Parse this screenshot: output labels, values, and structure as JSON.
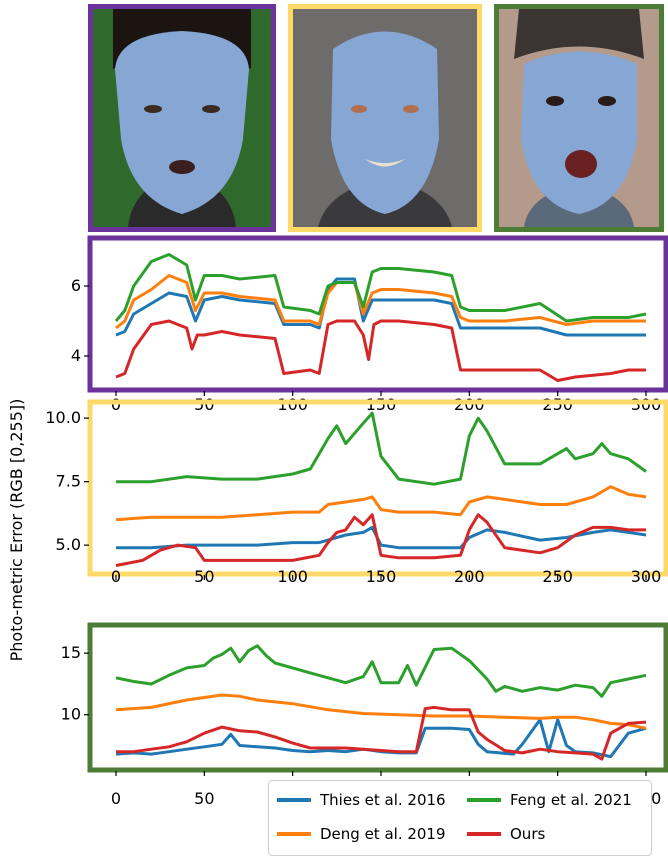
{
  "colors": {
    "purple": "#6a329a",
    "yellow": "#fdd96a",
    "green": "#4d7c36",
    "thies": "#1f77b4",
    "deng": "#ff7f0e",
    "feng": "#2ca02c",
    "ours": "#d62728"
  },
  "photos": [
    {
      "frame": "purple",
      "background": "green-screen",
      "mouth": "open"
    },
    {
      "frame": "yellow",
      "background": "indoor-gray",
      "mouth": "smile"
    },
    {
      "frame": "green",
      "background": "indoor-light",
      "mouth": "open-wide"
    }
  ],
  "y_axis_label": "Photo-metric Error  (RGB [0,255])",
  "legend": [
    {
      "label": "Thies et al. 2016",
      "color": "#1f77b4"
    },
    {
      "label": "Feng et al. 2021",
      "color": "#2ca02c"
    },
    {
      "label": "Deng et al. 2019",
      "color": "#ff7f0e"
    },
    {
      "label": "Ours",
      "color": "#d62728"
    }
  ],
  "chart_data": [
    {
      "type": "line",
      "frame": "purple",
      "xlim": [
        0,
        300
      ],
      "ylim": [
        3.2,
        7.2
      ],
      "xticks": [
        0,
        50,
        100,
        150,
        200,
        250,
        300
      ],
      "yticks": [
        4,
        6
      ],
      "series": [
        {
          "name": "Thies et al. 2016",
          "x": [
            0,
            5,
            10,
            20,
            30,
            40,
            45,
            50,
            60,
            70,
            90,
            95,
            110,
            115,
            120,
            125,
            135,
            140,
            145,
            150,
            160,
            180,
            190,
            195,
            200,
            220,
            240,
            255,
            270,
            290,
            300
          ],
          "y": [
            4.6,
            4.7,
            5.2,
            5.5,
            5.8,
            5.7,
            5.0,
            5.6,
            5.7,
            5.6,
            5.5,
            4.9,
            4.9,
            4.8,
            5.9,
            6.2,
            6.2,
            5.0,
            5.6,
            5.6,
            5.6,
            5.6,
            5.5,
            4.8,
            4.8,
            4.8,
            4.8,
            4.6,
            4.6,
            4.6,
            4.6
          ]
        },
        {
          "name": "Deng et al. 2019",
          "x": [
            0,
            5,
            10,
            20,
            30,
            40,
            45,
            50,
            60,
            70,
            90,
            95,
            110,
            115,
            120,
            125,
            135,
            140,
            145,
            150,
            160,
            180,
            190,
            195,
            200,
            220,
            240,
            255,
            270,
            290,
            300
          ],
          "y": [
            4.8,
            5.0,
            5.6,
            5.9,
            6.3,
            6.1,
            5.3,
            5.8,
            5.8,
            5.7,
            5.6,
            5.0,
            5.0,
            4.9,
            5.8,
            6.1,
            6.1,
            5.2,
            5.8,
            5.9,
            5.9,
            5.8,
            5.7,
            5.1,
            5.0,
            5.0,
            5.1,
            4.9,
            5.0,
            5.0,
            5.0
          ]
        },
        {
          "name": "Feng et al. 2021",
          "x": [
            0,
            5,
            10,
            20,
            30,
            40,
            45,
            50,
            60,
            70,
            90,
            95,
            110,
            115,
            120,
            125,
            135,
            140,
            145,
            150,
            160,
            180,
            190,
            195,
            200,
            220,
            240,
            255,
            270,
            290,
            300
          ],
          "y": [
            5.0,
            5.3,
            6.0,
            6.7,
            6.9,
            6.6,
            5.6,
            6.3,
            6.3,
            6.2,
            6.3,
            5.4,
            5.3,
            5.2,
            6.0,
            6.1,
            6.1,
            5.4,
            6.4,
            6.5,
            6.5,
            6.4,
            6.3,
            5.4,
            5.3,
            5.3,
            5.5,
            5.0,
            5.1,
            5.1,
            5.2
          ]
        },
        {
          "name": "Ours",
          "x": [
            0,
            5,
            10,
            20,
            30,
            40,
            43,
            46,
            50,
            60,
            70,
            90,
            95,
            110,
            115,
            120,
            125,
            135,
            140,
            143,
            146,
            150,
            160,
            180,
            190,
            195,
            200,
            220,
            240,
            250,
            260,
            280,
            290,
            300
          ],
          "y": [
            3.4,
            3.5,
            4.2,
            4.9,
            5.0,
            4.8,
            4.2,
            4.6,
            4.6,
            4.7,
            4.6,
            4.5,
            3.5,
            3.6,
            3.5,
            4.9,
            5.0,
            5.0,
            4.6,
            3.9,
            4.9,
            5.0,
            5.0,
            4.9,
            4.8,
            3.6,
            3.6,
            3.6,
            3.6,
            3.3,
            3.4,
            3.5,
            3.6,
            3.6
          ]
        }
      ]
    },
    {
      "type": "line",
      "frame": "yellow",
      "xlim": [
        0,
        300
      ],
      "ylim": [
        4.1,
        10.4
      ],
      "xticks": [
        0,
        50,
        100,
        150,
        200,
        250,
        300
      ],
      "yticks": [
        5.0,
        7.5,
        10.0
      ],
      "series": [
        {
          "name": "Thies et al. 2016",
          "x": [
            0,
            20,
            40,
            60,
            80,
            100,
            115,
            120,
            130,
            140,
            145,
            150,
            160,
            180,
            195,
            200,
            210,
            220,
            240,
            255,
            270,
            280,
            290,
            300
          ],
          "y": [
            4.9,
            4.9,
            5.0,
            5.0,
            5.0,
            5.1,
            5.1,
            5.2,
            5.4,
            5.5,
            5.7,
            5.0,
            4.9,
            4.9,
            4.9,
            5.3,
            5.6,
            5.5,
            5.2,
            5.3,
            5.5,
            5.6,
            5.5,
            5.4
          ]
        },
        {
          "name": "Deng et al. 2019",
          "x": [
            0,
            20,
            40,
            60,
            80,
            100,
            115,
            120,
            130,
            140,
            145,
            150,
            160,
            180,
            195,
            200,
            210,
            220,
            240,
            255,
            270,
            280,
            290,
            300
          ],
          "y": [
            6.0,
            6.1,
            6.1,
            6.1,
            6.2,
            6.3,
            6.3,
            6.6,
            6.7,
            6.8,
            6.9,
            6.4,
            6.3,
            6.3,
            6.2,
            6.7,
            6.9,
            6.8,
            6.6,
            6.6,
            6.9,
            7.3,
            7.0,
            6.9
          ]
        },
        {
          "name": "Feng et al. 2021",
          "x": [
            0,
            20,
            40,
            60,
            80,
            100,
            110,
            115,
            120,
            125,
            130,
            140,
            145,
            150,
            160,
            180,
            195,
            200,
            205,
            210,
            220,
            240,
            255,
            260,
            270,
            275,
            280,
            290,
            300
          ],
          "y": [
            7.5,
            7.5,
            7.7,
            7.6,
            7.6,
            7.8,
            8.0,
            8.6,
            9.2,
            9.7,
            9.0,
            9.8,
            10.2,
            8.5,
            7.6,
            7.4,
            7.6,
            9.3,
            10.0,
            9.5,
            8.2,
            8.2,
            8.8,
            8.4,
            8.6,
            9.0,
            8.6,
            8.4,
            7.9
          ]
        },
        {
          "name": "Ours",
          "x": [
            0,
            15,
            25,
            35,
            45,
            50,
            60,
            80,
            100,
            115,
            120,
            125,
            130,
            135,
            140,
            145,
            150,
            160,
            180,
            195,
            200,
            205,
            210,
            220,
            240,
            250,
            260,
            270,
            280,
            290,
            300
          ],
          "y": [
            4.2,
            4.4,
            4.8,
            5.0,
            4.9,
            4.4,
            4.4,
            4.4,
            4.4,
            4.6,
            5.1,
            5.5,
            5.6,
            6.1,
            5.8,
            6.2,
            4.6,
            4.5,
            4.5,
            4.6,
            5.6,
            6.2,
            5.9,
            4.9,
            4.7,
            4.9,
            5.4,
            5.7,
            5.7,
            5.6,
            5.6
          ]
        }
      ]
    },
    {
      "type": "line",
      "frame": "green",
      "xlim": [
        0,
        300
      ],
      "ylim": [
        6.0,
        16.8
      ],
      "xticks": [
        0,
        50,
        100,
        150,
        200,
        250,
        300
      ],
      "yticks": [
        10,
        15
      ],
      "series": [
        {
          "name": "Thies et al. 2016",
          "x": [
            0,
            10,
            20,
            30,
            40,
            50,
            60,
            65,
            70,
            80,
            90,
            100,
            110,
            120,
            130,
            140,
            150,
            160,
            170,
            175,
            180,
            190,
            200,
            205,
            210,
            225,
            230,
            240,
            245,
            250,
            255,
            260,
            270,
            280,
            290,
            300
          ],
          "y": [
            6.8,
            6.9,
            6.8,
            7.0,
            7.2,
            7.4,
            7.6,
            8.4,
            7.5,
            7.4,
            7.3,
            7.1,
            7.0,
            7.1,
            7.0,
            7.2,
            7.0,
            6.9,
            6.9,
            8.9,
            8.9,
            8.9,
            8.8,
            7.6,
            7.0,
            6.8,
            7.6,
            9.6,
            7.0,
            9.6,
            7.5,
            7.0,
            6.9,
            6.6,
            8.5,
            8.9
          ]
        },
        {
          "name": "Deng et al. 2019",
          "x": [
            0,
            20,
            40,
            60,
            70,
            80,
            100,
            120,
            140,
            160,
            180,
            200,
            220,
            240,
            250,
            260,
            270,
            280,
            290,
            300
          ],
          "y": [
            10.4,
            10.6,
            11.2,
            11.6,
            11.5,
            11.2,
            10.9,
            10.4,
            10.1,
            10.0,
            9.9,
            9.9,
            9.8,
            9.7,
            9.8,
            9.8,
            9.6,
            9.3,
            9.2,
            8.9
          ]
        },
        {
          "name": "Feng et al. 2021",
          "x": [
            0,
            10,
            20,
            30,
            40,
            50,
            55,
            60,
            65,
            70,
            75,
            80,
            85,
            90,
            100,
            110,
            120,
            130,
            140,
            145,
            150,
            160,
            165,
            170,
            180,
            190,
            200,
            210,
            215,
            220,
            230,
            240,
            250,
            260,
            270,
            275,
            280,
            290,
            300
          ],
          "y": [
            13.0,
            12.7,
            12.5,
            13.2,
            13.8,
            14.0,
            14.6,
            14.9,
            15.4,
            14.3,
            15.2,
            15.6,
            14.8,
            14.2,
            13.8,
            13.4,
            13.0,
            12.6,
            13.1,
            14.3,
            12.6,
            12.6,
            14.0,
            12.4,
            15.3,
            15.4,
            14.4,
            12.9,
            11.9,
            12.3,
            11.9,
            12.2,
            12.0,
            12.4,
            12.2,
            11.5,
            12.6,
            12.9,
            13.2
          ]
        },
        {
          "name": "Ours",
          "x": [
            0,
            10,
            20,
            30,
            40,
            50,
            60,
            70,
            80,
            90,
            100,
            110,
            120,
            130,
            140,
            150,
            160,
            170,
            175,
            180,
            190,
            200,
            205,
            210,
            220,
            230,
            240,
            250,
            260,
            270,
            275,
            280,
            290,
            300
          ],
          "y": [
            7.0,
            7.0,
            7.2,
            7.4,
            7.8,
            8.5,
            9.0,
            8.7,
            8.6,
            8.2,
            7.7,
            7.3,
            7.3,
            7.3,
            7.2,
            7.1,
            7.0,
            7.0,
            10.5,
            10.6,
            10.4,
            10.4,
            8.6,
            8.0,
            7.1,
            6.9,
            7.2,
            7.0,
            6.9,
            6.8,
            6.4,
            8.5,
            9.3,
            9.4
          ]
        }
      ]
    }
  ]
}
